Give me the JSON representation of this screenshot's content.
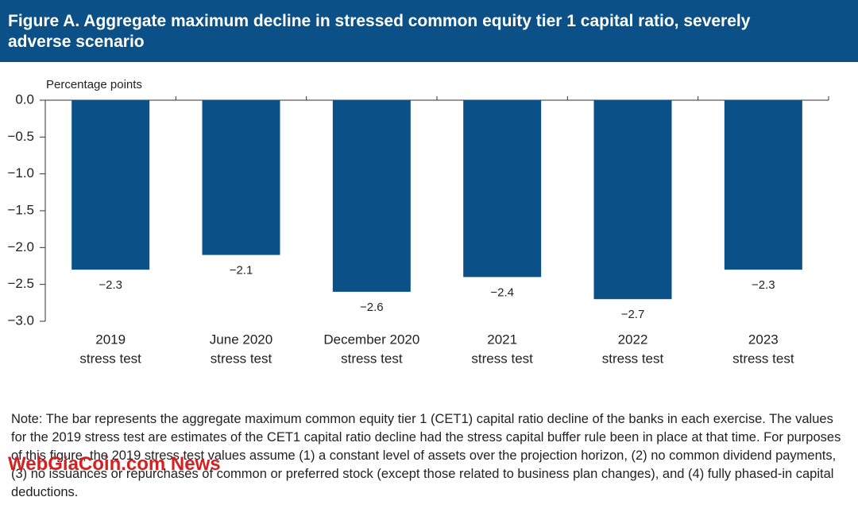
{
  "chart_data": {
    "type": "bar",
    "title": "Figure A.  Aggregate maximum decline in stressed common equity tier 1 capital ratio, severely adverse scenario",
    "y_label": "Percentage points",
    "categories": [
      [
        "2019",
        "stress test"
      ],
      [
        "June 2020",
        "stress test"
      ],
      [
        "December 2020",
        "stress test"
      ],
      [
        "2021",
        "stress test"
      ],
      [
        "2022",
        "stress test"
      ],
      [
        "2023",
        "stress test"
      ]
    ],
    "values": [
      -2.3,
      -2.1,
      -2.6,
      -2.4,
      -2.7,
      -2.3
    ],
    "value_labels": [
      "−2.3",
      "−2.1",
      "−2.6",
      "−2.4",
      "−2.7",
      "−2.3"
    ],
    "color": "#0b5188",
    "ylim": [
      -3.0,
      0.0
    ],
    "yticks": [
      {
        "value": 0,
        "label": "0.0"
      },
      {
        "value": -0.5,
        "label": "−0.5"
      },
      {
        "value": -1.0,
        "label": "−1.0"
      },
      {
        "value": -1.5,
        "label": "−1.5"
      },
      {
        "value": -2.0,
        "label": "−2.0"
      },
      {
        "value": -2.5,
        "label": "−2.5"
      },
      {
        "value": -3.0,
        "label": "−3.0"
      }
    ],
    "note": "Note: The bar represents the aggregate maximum common equity tier 1 (CET1) capital ratio decline of the banks in each exercise. The values for the 2019 stress test are estimates of the CET1 capital ratio decline had the stress capital buffer rule been in place at that time. For purposes of this figure, the 2019 stress test values assume (1) a constant level of assets over the projection horizon, (2) no common dividend payments, (3) no issuances or repurchases of common or preferred stock (except those related to business plan changes), and (4) fully phased-in capital deductions.",
    "watermark": "WebGiaCoin.com News"
  }
}
